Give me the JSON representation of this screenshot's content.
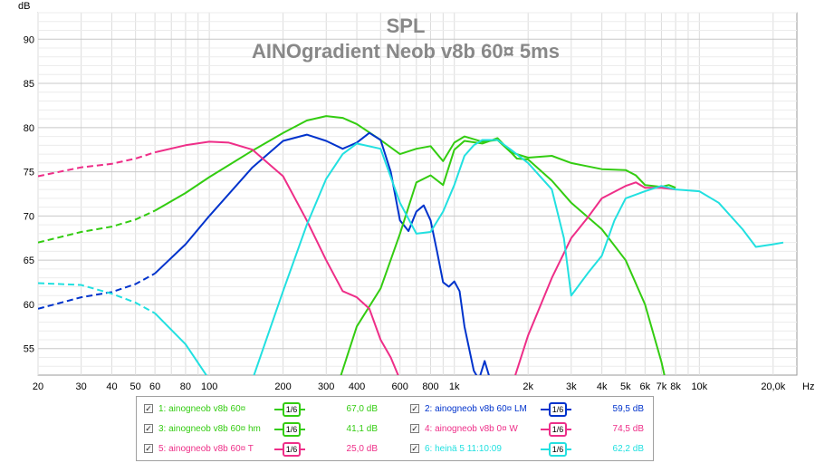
{
  "chart_data": {
    "type": "line",
    "title": "SPL",
    "subtitle": "AINOgradient Neob v8b 60¤  5ms",
    "ylabel": "dB",
    "xlabel": "Hz",
    "x_scale": "log",
    "xlim": [
      20,
      25000
    ],
    "ylim": [
      52,
      93
    ],
    "grid": true,
    "y_ticks": [
      55,
      60,
      65,
      70,
      75,
      80,
      85,
      90
    ],
    "x_ticks": [
      {
        "v": 20,
        "label": "20"
      },
      {
        "v": 30,
        "label": "30"
      },
      {
        "v": 40,
        "label": "40"
      },
      {
        "v": 50,
        "label": "50"
      },
      {
        "v": 60,
        "label": "60"
      },
      {
        "v": 80,
        "label": "80"
      },
      {
        "v": 100,
        "label": "100"
      },
      {
        "v": 200,
        "label": "200"
      },
      {
        "v": 300,
        "label": "300"
      },
      {
        "v": 400,
        "label": "400"
      },
      {
        "v": 600,
        "label": "600"
      },
      {
        "v": 800,
        "label": "800"
      },
      {
        "v": 1000,
        "label": "1k"
      },
      {
        "v": 2000,
        "label": "2k"
      },
      {
        "v": 3000,
        "label": "3k"
      },
      {
        "v": 4000,
        "label": "4k"
      },
      {
        "v": 5000,
        "label": "5k"
      },
      {
        "v": 6000,
        "label": "6k"
      },
      {
        "v": 7000,
        "label": "7k"
      },
      {
        "v": 8000,
        "label": "8k"
      },
      {
        "v": 10000,
        "label": "10k"
      },
      {
        "v": 20000,
        "label": "20,0k"
      }
    ],
    "series": [
      {
        "name": "1: ainogneob v8b 60¤",
        "color": "#33cc11",
        "smoothing": "1/6",
        "level": "67,0 dB",
        "dashed_below": 60,
        "points": [
          [
            20,
            67.0
          ],
          [
            30,
            68.2
          ],
          [
            40,
            68.8
          ],
          [
            50,
            69.6
          ],
          [
            60,
            70.6
          ],
          [
            80,
            72.6
          ],
          [
            100,
            74.4
          ],
          [
            150,
            77.4
          ],
          [
            200,
            79.4
          ],
          [
            250,
            80.8
          ],
          [
            300,
            81.3
          ],
          [
            350,
            81.1
          ],
          [
            400,
            80.4
          ],
          [
            500,
            78.6
          ],
          [
            600,
            77.0
          ],
          [
            700,
            77.6
          ],
          [
            800,
            77.9
          ],
          [
            900,
            76.2
          ],
          [
            1000,
            78.3
          ],
          [
            1100,
            79.0
          ],
          [
            1300,
            78.4
          ],
          [
            1500,
            78.6
          ],
          [
            1700,
            77.2
          ],
          [
            2000,
            76.6
          ],
          [
            2500,
            76.8
          ],
          [
            3000,
            76.0
          ],
          [
            4000,
            75.3
          ],
          [
            5000,
            75.2
          ],
          [
            5500,
            74.6
          ],
          [
            6000,
            73.5
          ],
          [
            7000,
            73.3
          ],
          [
            7500,
            73.5
          ],
          [
            8000,
            73.2
          ]
        ]
      },
      {
        "name": "2: ainogneob v8b 60¤ LM",
        "color": "#0033cc",
        "smoothing": "1/6",
        "level": "59,5 dB",
        "dashed_below": 60,
        "points": [
          [
            20,
            59.5
          ],
          [
            30,
            60.8
          ],
          [
            40,
            61.4
          ],
          [
            50,
            62.3
          ],
          [
            60,
            63.5
          ],
          [
            80,
            66.8
          ],
          [
            100,
            70.0
          ],
          [
            150,
            75.5
          ],
          [
            200,
            78.5
          ],
          [
            250,
            79.2
          ],
          [
            300,
            78.5
          ],
          [
            350,
            77.6
          ],
          [
            400,
            78.3
          ],
          [
            450,
            79.4
          ],
          [
            500,
            78.6
          ],
          [
            550,
            75.0
          ],
          [
            600,
            69.5
          ],
          [
            650,
            68.3
          ],
          [
            700,
            70.5
          ],
          [
            750,
            71.2
          ],
          [
            800,
            69.5
          ],
          [
            850,
            66.0
          ],
          [
            900,
            62.5
          ],
          [
            950,
            62.0
          ],
          [
            1000,
            62.6
          ],
          [
            1050,
            61.5
          ],
          [
            1100,
            57.5
          ],
          [
            1200,
            52.5
          ],
          [
            1260,
            51.5
          ],
          [
            1330,
            53.6
          ],
          [
            1400,
            51.5
          ]
        ]
      },
      {
        "name": "3: ainogneob v8b 60¤ hm",
        "color": "#33cc11",
        "smoothing": "1/6",
        "level": "41,1 dB",
        "dashed_below": 0,
        "points": [
          [
            340,
            51.5
          ],
          [
            400,
            57.5
          ],
          [
            500,
            61.8
          ],
          [
            600,
            68.0
          ],
          [
            700,
            73.8
          ],
          [
            800,
            74.6
          ],
          [
            900,
            73.5
          ],
          [
            1000,
            77.5
          ],
          [
            1100,
            78.5
          ],
          [
            1300,
            78.2
          ],
          [
            1500,
            78.8
          ],
          [
            1800,
            76.5
          ],
          [
            2000,
            76.4
          ],
          [
            2500,
            74.0
          ],
          [
            3000,
            71.5
          ],
          [
            4000,
            68.5
          ],
          [
            5000,
            65.0
          ],
          [
            6000,
            60.0
          ],
          [
            7000,
            53.5
          ],
          [
            7200,
            52.0
          ]
        ]
      },
      {
        "name": "4: ainogneob v8b 0¤ W",
        "color": "#ee2e88",
        "smoothing": "1/6",
        "level": "74,5 dB",
        "dashed_below": 60,
        "points": [
          [
            1750,
            51.5
          ],
          [
            2000,
            56.5
          ],
          [
            2500,
            63.0
          ],
          [
            2800,
            65.8
          ],
          [
            3000,
            67.5
          ],
          [
            3500,
            69.8
          ],
          [
            4000,
            72.0
          ],
          [
            5000,
            73.4
          ],
          [
            5500,
            73.8
          ],
          [
            6000,
            73.2
          ],
          [
            7000,
            73.2
          ],
          [
            8000,
            73.0
          ]
        ]
      },
      {
        "name": "5: ainogneob v8b 60¤ T",
        "color": "#ee2e88",
        "smoothing": "1/6",
        "level": "25,0 dB",
        "dashed_below": 60,
        "points": [
          [
            20,
            74.5
          ],
          [
            30,
            75.5
          ],
          [
            40,
            75.9
          ],
          [
            50,
            76.5
          ],
          [
            60,
            77.2
          ],
          [
            80,
            78.0
          ],
          [
            100,
            78.4
          ],
          [
            120,
            78.3
          ],
          [
            150,
            77.5
          ],
          [
            200,
            74.5
          ],
          [
            250,
            69.5
          ],
          [
            300,
            65.0
          ],
          [
            350,
            61.5
          ],
          [
            400,
            60.8
          ],
          [
            450,
            59.5
          ],
          [
            500,
            56.0
          ],
          [
            550,
            54.0
          ],
          [
            600,
            51.5
          ]
        ]
      },
      {
        "name": "6: heinä 5 11:10:09",
        "color": "#22e0e0",
        "smoothing": "1/6",
        "level": "62,2 dB",
        "dashed_below": 60,
        "points": [
          [
            20,
            62.4
          ],
          [
            30,
            62.2
          ],
          [
            40,
            61.2
          ],
          [
            50,
            60.2
          ],
          [
            60,
            59.0
          ],
          [
            80,
            55.5
          ],
          [
            100,
            51.5
          ],
          [
            150,
            51.5
          ],
          [
            200,
            61.5
          ],
          [
            250,
            69.0
          ],
          [
            300,
            74.2
          ],
          [
            350,
            77.0
          ],
          [
            400,
            78.2
          ],
          [
            500,
            77.6
          ],
          [
            600,
            71.5
          ],
          [
            700,
            68.0
          ],
          [
            800,
            68.2
          ],
          [
            900,
            70.5
          ],
          [
            1000,
            73.5
          ],
          [
            1100,
            76.8
          ],
          [
            1200,
            78.0
          ],
          [
            1300,
            78.6
          ],
          [
            1500,
            78.6
          ],
          [
            1700,
            77.5
          ],
          [
            2000,
            76.0
          ],
          [
            2500,
            73.0
          ],
          [
            2800,
            67.5
          ],
          [
            3000,
            61.0
          ],
          [
            3500,
            63.5
          ],
          [
            4000,
            65.5
          ],
          [
            4500,
            69.5
          ],
          [
            5000,
            72.0
          ],
          [
            6000,
            72.8
          ],
          [
            7000,
            73.4
          ],
          [
            8000,
            73.0
          ],
          [
            10000,
            72.8
          ],
          [
            12000,
            71.5
          ],
          [
            15000,
            68.5
          ],
          [
            17000,
            66.5
          ],
          [
            20000,
            66.8
          ],
          [
            22000,
            67.0
          ]
        ]
      }
    ]
  },
  "legend": {
    "items": [
      {
        "label": "1: ainogneob v8b 60¤",
        "smooth": "1/6",
        "value": "67,0 dB",
        "color": "#33cc11"
      },
      {
        "label": "2: ainogneob v8b 60¤ LM",
        "smooth": "1/6",
        "value": "59,5 dB",
        "color": "#0033cc"
      },
      {
        "label": "3: ainogneob v8b 60¤ hm",
        "smooth": "1/6",
        "value": "41,1 dB",
        "color": "#33cc11"
      },
      {
        "label": "4: ainogneob v8b 0¤ W",
        "smooth": "1/6",
        "value": "74,5 dB",
        "color": "#ee2e88"
      },
      {
        "label": "5: ainogneob v8b 60¤ T",
        "smooth": "1/6",
        "value": "25,0 dB",
        "color": "#ee2e88"
      },
      {
        "label": "6: heinä 5 11:10:09",
        "smooth": "1/6",
        "value": "62,2 dB",
        "color": "#22e0e0"
      }
    ]
  }
}
